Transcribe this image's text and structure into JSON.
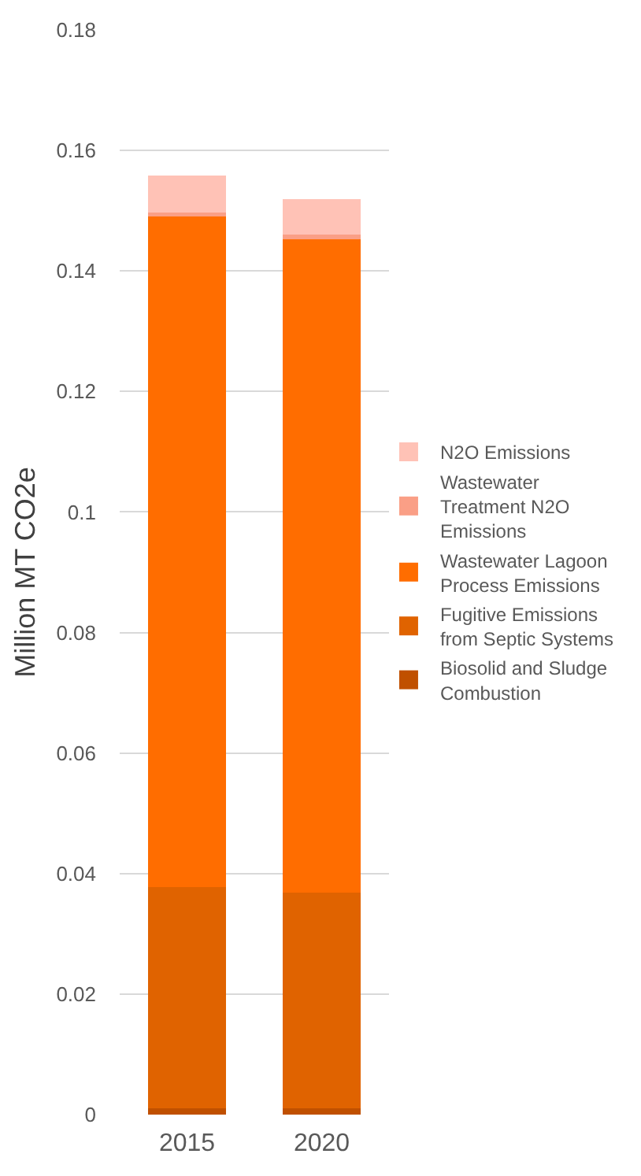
{
  "chart_data": {
    "type": "bar",
    "ylabel": "Million MT CO2e",
    "categories": [
      "2015",
      "2020"
    ],
    "stacked": true,
    "series": [
      {
        "name": "Biosolid and Sludge Combustion",
        "color": "#c05000",
        "values": [
          0.0011,
          0.0011
        ]
      },
      {
        "name": "Fugitive Emissions from Septic Systems",
        "color": "#e06300",
        "values": [
          0.0366,
          0.0357
        ]
      },
      {
        "name": "Wastewater Lagoon Process Emissions",
        "color": "#ff6d00",
        "values": [
          0.1114,
          0.1085
        ]
      },
      {
        "name": "Wastewater Treatment N2O Emissions",
        "color": "#fa9f86",
        "values": [
          0.0006,
          0.0008
        ]
      },
      {
        "name": "N2O Emissions",
        "color": "#ffc2b6",
        "values": [
          0.0061,
          0.0058
        ]
      }
    ],
    "ylim": [
      0,
      0.18
    ],
    "yticks": [
      0,
      0.02,
      0.04,
      0.06,
      0.08,
      0.1,
      0.12,
      0.14,
      0.16,
      0.18
    ],
    "grid": "y",
    "legend": "right"
  }
}
